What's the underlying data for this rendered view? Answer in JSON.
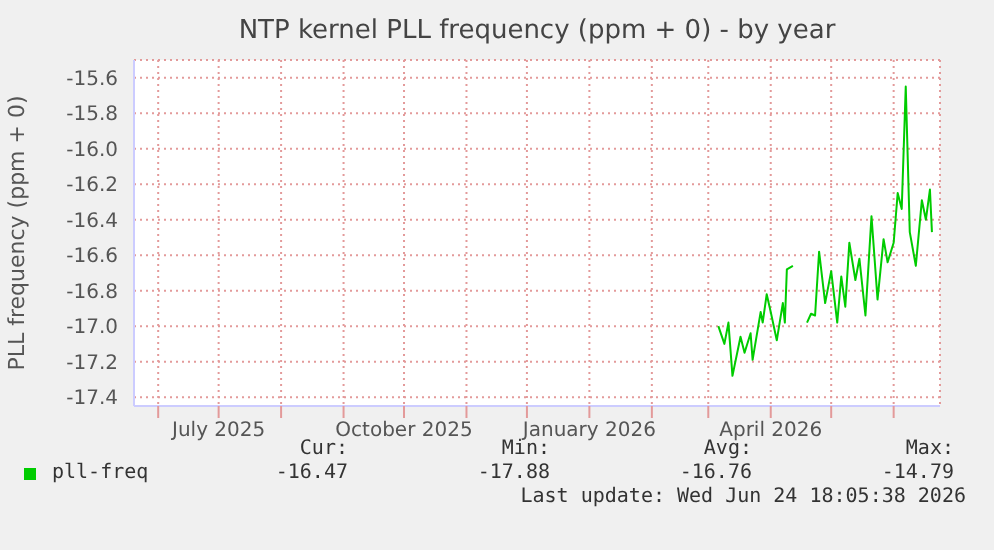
{
  "chart_data": {
    "type": "line",
    "title": "NTP kernel PLL frequency (ppm + 0) - by year",
    "ylabel": "PLL frequency (ppm + 0)",
    "x": [
      "2026-03-06",
      "2026-03-09",
      "2026-03-11",
      "2026-03-13",
      "2026-03-17",
      "2026-03-19",
      "2026-03-22",
      "2026-03-23",
      "2026-03-27",
      "2026-03-28",
      "2026-03-30",
      "2026-04-01",
      "2026-04-04",
      "2026-04-07",
      "2026-04-08",
      "2026-04-09",
      "2026-04-12",
      "2026-04-15",
      "2026-04-19",
      "2026-04-21",
      "2026-04-23",
      "2026-04-25",
      "2026-04-28",
      "2026-05-01",
      "2026-05-04",
      "2026-05-06",
      "2026-05-08",
      "2026-05-10",
      "2026-05-13",
      "2026-05-15",
      "2026-05-18",
      "2026-05-21",
      "2026-05-24",
      "2026-05-27",
      "2026-05-29",
      "2026-06-01",
      "2026-06-03",
      "2026-06-05",
      "2026-06-07",
      "2026-06-09",
      "2026-06-12",
      "2026-06-15",
      "2026-06-17",
      "2026-06-19",
      "2026-06-20"
    ],
    "series": [
      {
        "name": "pll-freq",
        "color": "#00cc00",
        "values": [
          -17.0,
          -17.1,
          -16.98,
          -17.28,
          -17.06,
          -17.15,
          -17.04,
          -17.19,
          -16.92,
          -16.98,
          -16.82,
          -16.92,
          -17.08,
          -16.87,
          -16.98,
          -16.68,
          -16.66,
          null,
          -16.98,
          -16.93,
          -16.94,
          -16.58,
          -16.87,
          -16.69,
          -16.98,
          -16.72,
          -16.89,
          -16.53,
          -16.74,
          -16.62,
          -16.94,
          -16.38,
          -16.85,
          -16.51,
          -16.64,
          -16.53,
          -16.25,
          -16.34,
          -15.65,
          -16.47,
          -16.66,
          -16.29,
          -16.4,
          -16.23,
          -16.47
        ]
      }
    ],
    "xlim": [
      "2025-05-20",
      "2026-06-24"
    ],
    "xticks": [
      {
        "value": "2025-06-01",
        "label": null
      },
      {
        "value": "2025-07-01",
        "label": "July 2025"
      },
      {
        "value": "2025-08-01",
        "label": null
      },
      {
        "value": "2025-09-01",
        "label": null
      },
      {
        "value": "2025-10-01",
        "label": "October 2025"
      },
      {
        "value": "2025-11-01",
        "label": null
      },
      {
        "value": "2025-12-01",
        "label": null
      },
      {
        "value": "2026-01-01",
        "label": "January 2026"
      },
      {
        "value": "2026-02-01",
        "label": null
      },
      {
        "value": "2026-03-01",
        "label": null
      },
      {
        "value": "2026-04-01",
        "label": "April 2026"
      },
      {
        "value": "2026-05-01",
        "label": null
      },
      {
        "value": "2026-06-01",
        "label": null
      }
    ],
    "ylim": [
      -17.45,
      -15.5
    ],
    "yticks": [
      -17.4,
      -17.2,
      {
        "value": -17,
        "label": "-17.0"
      },
      -16.8,
      -16.6,
      -16.4,
      -16.2,
      {
        "value": -16,
        "label": "-16.0"
      },
      -15.8,
      -15.6
    ],
    "grid": true,
    "legend": "bottom",
    "marker": "none",
    "line_style": "solid",
    "annotations": [
      "Cur:",
      "Min:",
      "Avg:",
      "Max:",
      "-16.47",
      "-17.88",
      "-16.76",
      "-14.79",
      "Last update: Wed Jun 24 18:05:38 2026"
    ]
  }
}
